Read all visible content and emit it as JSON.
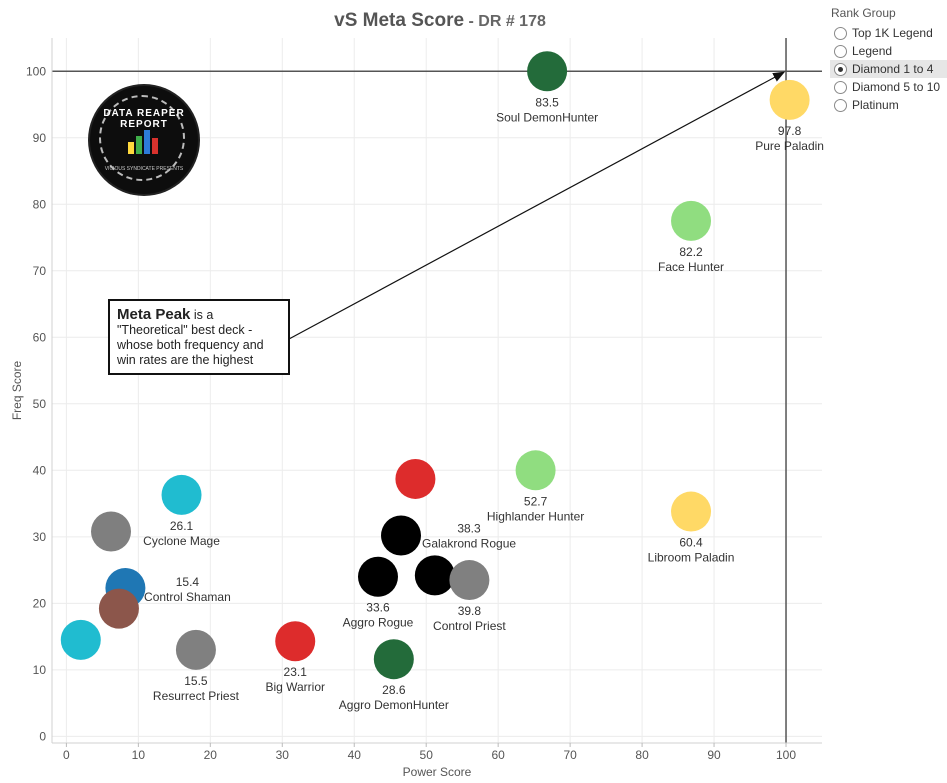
{
  "title": {
    "main": "vS Meta Score",
    "sub": " - DR # 178"
  },
  "legend": {
    "title": "Rank Group",
    "items": [
      {
        "label": "Top 1K Legend",
        "selected": false
      },
      {
        "label": "Legend",
        "selected": false
      },
      {
        "label": "Diamond 1 to 4",
        "selected": true
      },
      {
        "label": "Diamond 5 to 10",
        "selected": false
      },
      {
        "label": "Platinum",
        "selected": false
      }
    ]
  },
  "logo": {
    "text": "DATA REAPER REPORT",
    "subtext": "VICIOUS SYNDICATE PRESENTS"
  },
  "annotation": {
    "bold": "Meta Peak",
    "text": " is a \"Theoretical\" best deck - whose both frequency and win rates are the highest"
  },
  "chart_data": {
    "type": "scatter",
    "xlabel": "Power Score",
    "ylabel": "Freq Score",
    "xlim": [
      -2,
      105
    ],
    "ylim": [
      -1,
      105
    ],
    "xticks": [
      0,
      10,
      20,
      30,
      40,
      50,
      60,
      70,
      80,
      90,
      100
    ],
    "yticks": [
      0,
      10,
      20,
      30,
      40,
      50,
      60,
      70,
      80,
      90,
      100
    ],
    "grid": true,
    "reference_lines": {
      "x": 100,
      "y": 100
    },
    "points": [
      {
        "x": 66.8,
        "y": 100,
        "value": "83.5",
        "name": "Soul DemonHunter",
        "color": "#236b3a"
      },
      {
        "x": 100.5,
        "y": 95.7,
        "value": "97.8",
        "name": "Pure Paladin",
        "color": "#ffd966"
      },
      {
        "x": 86.8,
        "y": 77.5,
        "value": "82.2",
        "name": "Face Hunter",
        "color": "#90dd80"
      },
      {
        "x": 65.2,
        "y": 40.0,
        "value": "52.7",
        "name": "Highlander Hunter",
        "color": "#90dd80"
      },
      {
        "x": 86.8,
        "y": 33.8,
        "value": "60.4",
        "name": "Libroom Paladin",
        "color": "#ffd966"
      },
      {
        "x": 48.5,
        "y": 38.7,
        "value": "",
        "name": "",
        "color": "#dd2c2c"
      },
      {
        "x": 46.5,
        "y": 30.2,
        "value": "38.3",
        "name": "Galakrond Rogue",
        "color": "#000000"
      },
      {
        "x": 43.3,
        "y": 24.0,
        "value": "33.6",
        "name": "Aggro Rogue",
        "color": "#000000"
      },
      {
        "x": 51.2,
        "y": 24.2,
        "value": "",
        "name": "",
        "color": "#000000"
      },
      {
        "x": 56.0,
        "y": 23.5,
        "value": "39.8",
        "name": "Control Priest",
        "color": "#808080"
      },
      {
        "x": 45.5,
        "y": 11.6,
        "value": "28.6",
        "name": "Aggro DemonHunter",
        "color": "#236b3a"
      },
      {
        "x": 31.8,
        "y": 14.3,
        "value": "23.1",
        "name": "Big Warrior",
        "color": "#dd2c2c"
      },
      {
        "x": 16.0,
        "y": 36.3,
        "value": "26.1",
        "name": "Cyclone Mage",
        "color": "#20bcd0"
      },
      {
        "x": 6.2,
        "y": 30.8,
        "value": "",
        "name": "",
        "color": "#7f7f7f"
      },
      {
        "x": 8.2,
        "y": 22.3,
        "value": "15.4",
        "name": "Control Shaman",
        "color": "#1f77b4"
      },
      {
        "x": 7.3,
        "y": 19.2,
        "value": "",
        "name": "",
        "color": "#8c564b"
      },
      {
        "x": 2.0,
        "y": 14.5,
        "value": "",
        "name": "",
        "color": "#20bcd0"
      },
      {
        "x": 18.0,
        "y": 13.0,
        "value": "15.5",
        "name": "Resurrect Priest",
        "color": "#808080"
      }
    ]
  }
}
